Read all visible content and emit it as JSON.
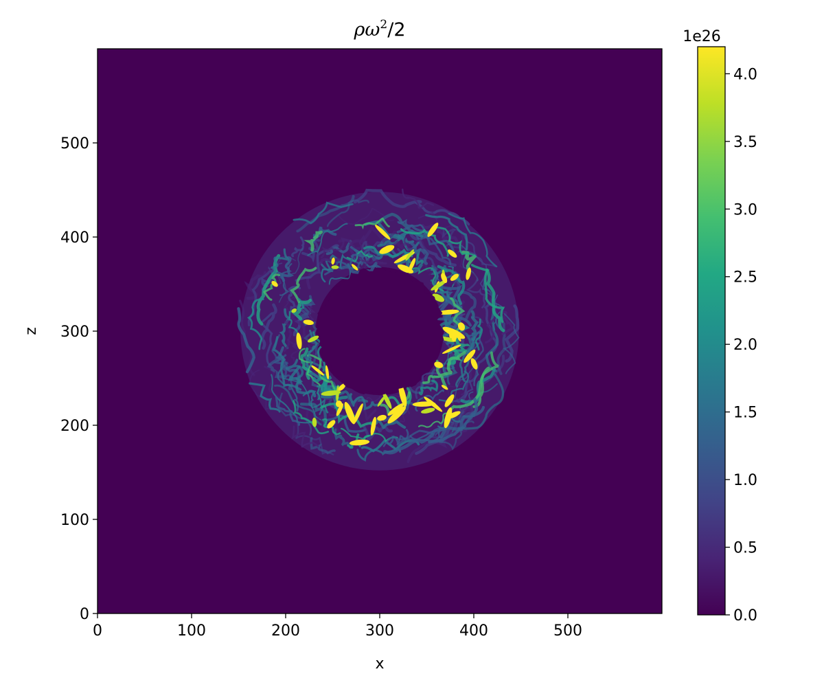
{
  "chart_data": {
    "type": "heatmap",
    "title_parts": [
      "ρω",
      "2",
      "/2"
    ],
    "xlabel": "x",
    "ylabel": "z",
    "xlim": [
      0,
      600
    ],
    "ylim": [
      0,
      600
    ],
    "x_ticks": [
      0,
      100,
      200,
      300,
      400,
      500
    ],
    "y_ticks": [
      0,
      100,
      200,
      300,
      400,
      500
    ],
    "x_tick_labels": [
      "0",
      "100",
      "200",
      "300",
      "400",
      "500"
    ],
    "y_tick_labels": [
      "0",
      "100",
      "200",
      "300",
      "400",
      "500"
    ],
    "colormap": "viridis",
    "colorbar": {
      "min": 0,
      "max": 4.2,
      "scale_label": "1e26",
      "ticks": [
        0,
        0.5,
        1.0,
        1.5,
        2.0,
        2.5,
        3.0,
        3.5,
        4.0
      ],
      "tick_labels": [
        "0.0",
        "0.5",
        "1.0",
        "1.5",
        "2.0",
        "2.5",
        "3.0",
        "3.5",
        "4.0"
      ]
    },
    "background_value": 0,
    "field": {
      "shape": "annulus",
      "center": [
        300,
        300
      ],
      "inner_radius": 68,
      "outer_radius": 148,
      "inner_core_value": 0,
      "peak_value": 4.2,
      "structure": "turbulent filaments"
    },
    "colors": {
      "viridis_low": "#440154",
      "viridis_high": "#fde725"
    }
  }
}
